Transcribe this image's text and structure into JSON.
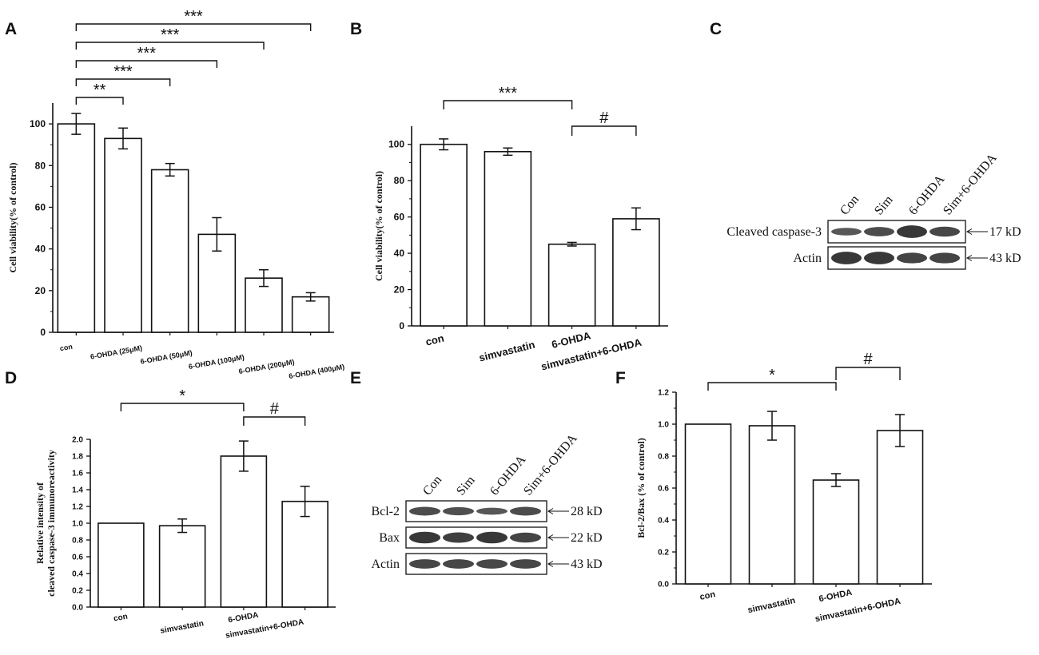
{
  "panel_letters": [
    "A",
    "B",
    "C",
    "D",
    "E",
    "F"
  ],
  "chart_data": [
    {
      "panel": "A",
      "type": "bar",
      "categories": [
        "con",
        "6-OHDA (25μM)",
        "6-OHDA (50μM)",
        "6-OHDA (100μM)",
        "6-OHDA (200μM)",
        "6-OHDA (400μM)"
      ],
      "values": [
        100,
        93,
        78,
        47,
        26,
        17
      ],
      "errors": [
        5,
        5,
        3,
        8,
        4,
        2
      ],
      "ylabel": "Cell viability(% of control)",
      "ylim": [
        0,
        110
      ],
      "yticks": [
        "0",
        "20",
        "40",
        "60",
        "80",
        "100"
      ],
      "brackets": [
        {
          "from": 0,
          "to": 5,
          "label": "***"
        },
        {
          "from": 0,
          "to": 4,
          "label": "***"
        },
        {
          "from": 0,
          "to": 3,
          "label": "***"
        },
        {
          "from": 0,
          "to": 2,
          "label": "***"
        },
        {
          "from": 0,
          "to": 1,
          "label": "**"
        }
      ]
    },
    {
      "panel": "B",
      "type": "bar",
      "categories": [
        "con",
        "simvastatin",
        "6-OHDA",
        "simvastatin+6-OHDA"
      ],
      "values": [
        100,
        96,
        45,
        59
      ],
      "errors": [
        3,
        2,
        1,
        6
      ],
      "ylabel": "Cell viability(% of control)",
      "ylim": [
        0,
        110
      ],
      "yticks": [
        "0",
        "20",
        "40",
        "60",
        "80",
        "100"
      ],
      "brackets": [
        {
          "from": 0,
          "to": 2,
          "label": "***"
        },
        {
          "from": 2,
          "to": 3,
          "label": "#"
        }
      ]
    },
    {
      "panel": "D",
      "type": "bar",
      "categories": [
        "con",
        "simvastatin",
        "6-OHDA",
        "simvastatin+6-OHDA"
      ],
      "values": [
        1.0,
        0.97,
        1.8,
        1.26
      ],
      "errors": [
        0,
        0.08,
        0.18,
        0.18
      ],
      "ylabel_lines": [
        "Relative intensity of",
        "cleaved caspase-3 immunoreactivity"
      ],
      "ylim": [
        0,
        2.0
      ],
      "yticks": [
        "0.0",
        "0.2",
        "0.4",
        "0.6",
        "0.8",
        "1.0",
        "1.2",
        "1.4",
        "1.6",
        "1.8",
        "2.0"
      ],
      "brackets": [
        {
          "from": 0,
          "to": 2,
          "label": "*"
        },
        {
          "from": 2,
          "to": 3,
          "label": "#"
        }
      ]
    },
    {
      "panel": "F",
      "type": "bar",
      "categories": [
        "con",
        "simvastatin",
        "6-OHDA",
        "simvastatin+6-OHDA"
      ],
      "values": [
        1.0,
        0.99,
        0.65,
        0.96
      ],
      "errors": [
        0,
        0.09,
        0.04,
        0.1
      ],
      "ylabel": "Bcl-2/Bax (% of control)",
      "ylim": [
        0,
        1.2
      ],
      "yticks": [
        "0.0",
        "0.2",
        "0.4",
        "0.6",
        "0.8",
        "1.0",
        "1.2"
      ],
      "brackets": [
        {
          "from": 0,
          "to": 2,
          "label": "*"
        },
        {
          "from": 2,
          "to": 3,
          "label": "#"
        }
      ]
    }
  ],
  "blots": {
    "C": {
      "lanes": [
        "Con",
        "Sim",
        "6-OHDA",
        "Sim+6-OHDA"
      ],
      "rows": [
        {
          "name": "Cleaved caspase-3",
          "size": "17 kD"
        },
        {
          "name": "Actin",
          "size": "43 kD"
        }
      ]
    },
    "E": {
      "lanes": [
        "Con",
        "Sim",
        "6-OHDA",
        "Sim+6-OHDA"
      ],
      "rows": [
        {
          "name": "Bcl-2",
          "size": "28 kD"
        },
        {
          "name": "Bax",
          "size": "22 kD"
        },
        {
          "name": "Actin",
          "size": "43 kD"
        }
      ]
    }
  }
}
